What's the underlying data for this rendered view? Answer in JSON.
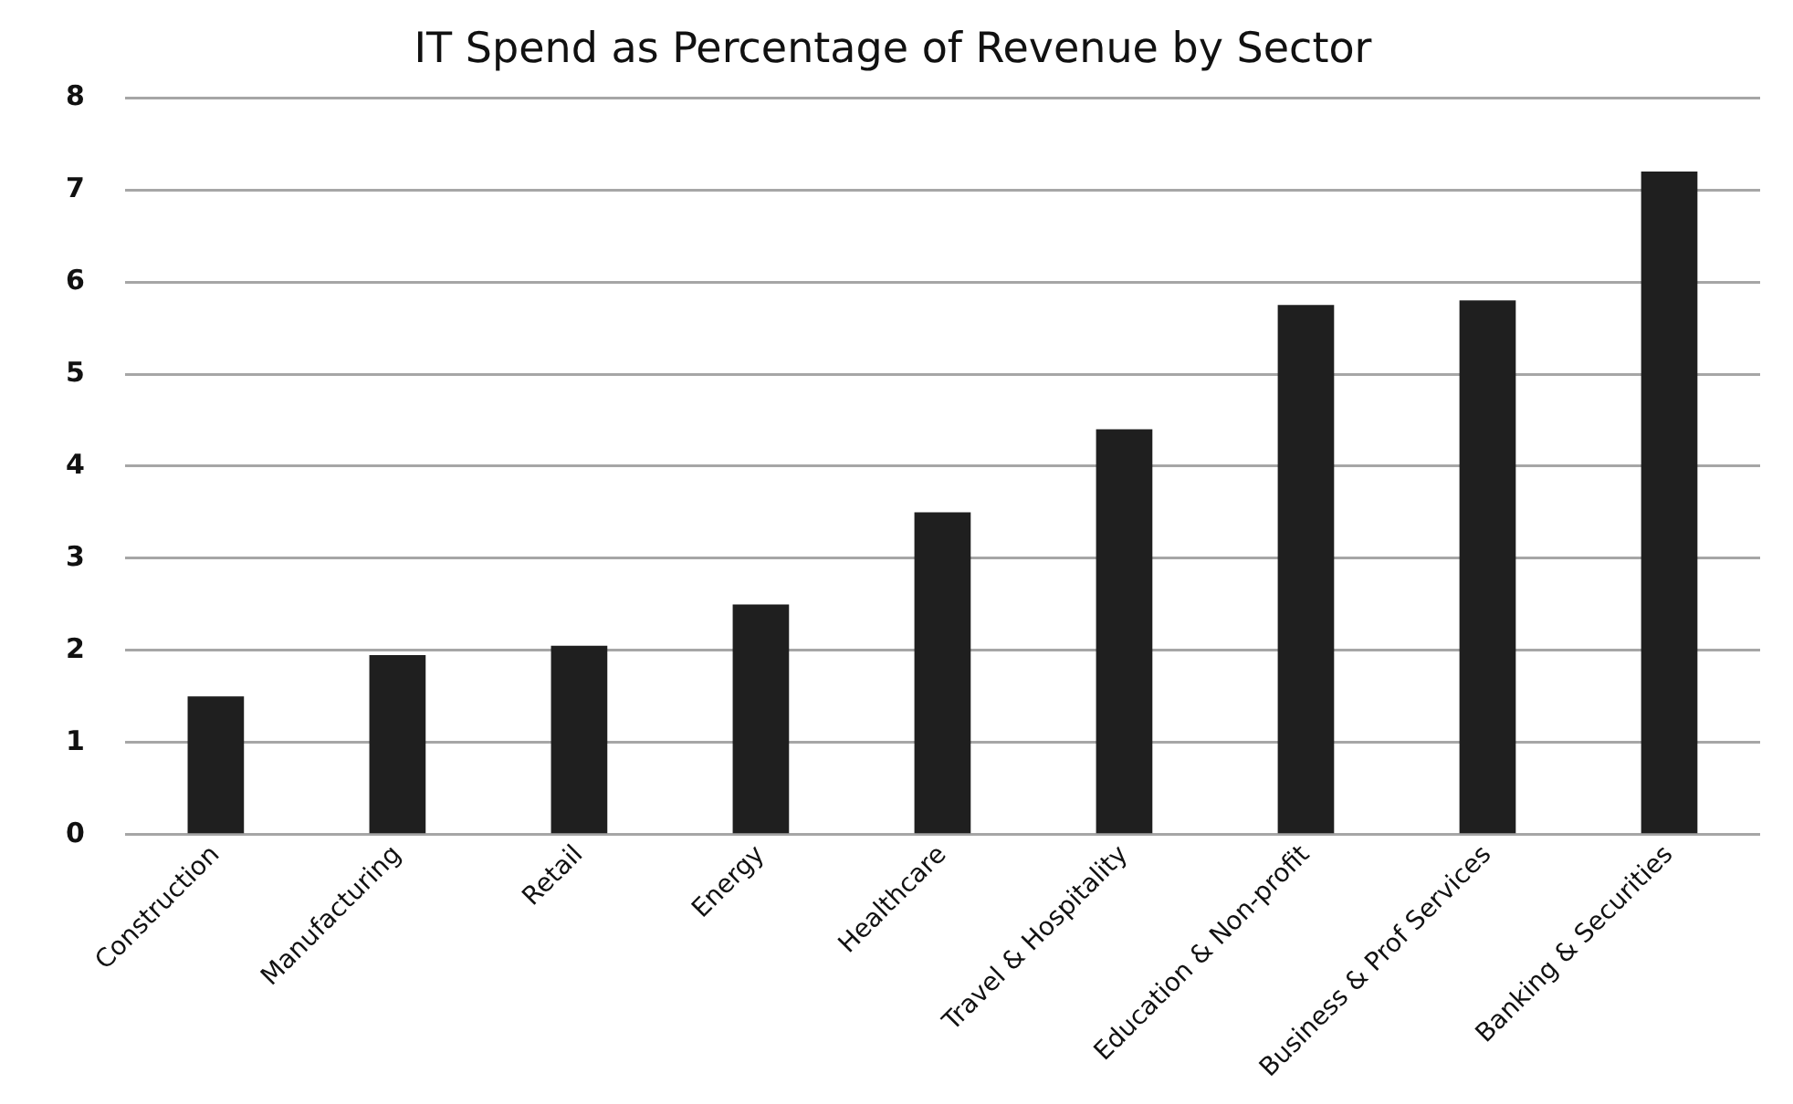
{
  "chart_data": {
    "type": "bar",
    "title": "IT Spend as Percentage of Revenue by Sector",
    "categories": [
      "Construction",
      "Manufacturing",
      "Retail",
      "Energy",
      "Healthcare",
      "Travel & Hospitality",
      "Education & Non-profit",
      "Business & Prof Services",
      "Banking & Securities"
    ],
    "values": [
      1.5,
      1.95,
      2.05,
      2.5,
      3.5,
      4.4,
      5.75,
      5.8,
      7.2
    ],
    "color": "#1f1f1f",
    "ylim": [
      0,
      8
    ],
    "yticks": [
      0,
      1,
      2,
      3,
      4,
      5,
      6,
      7,
      8
    ],
    "grid": "y"
  }
}
